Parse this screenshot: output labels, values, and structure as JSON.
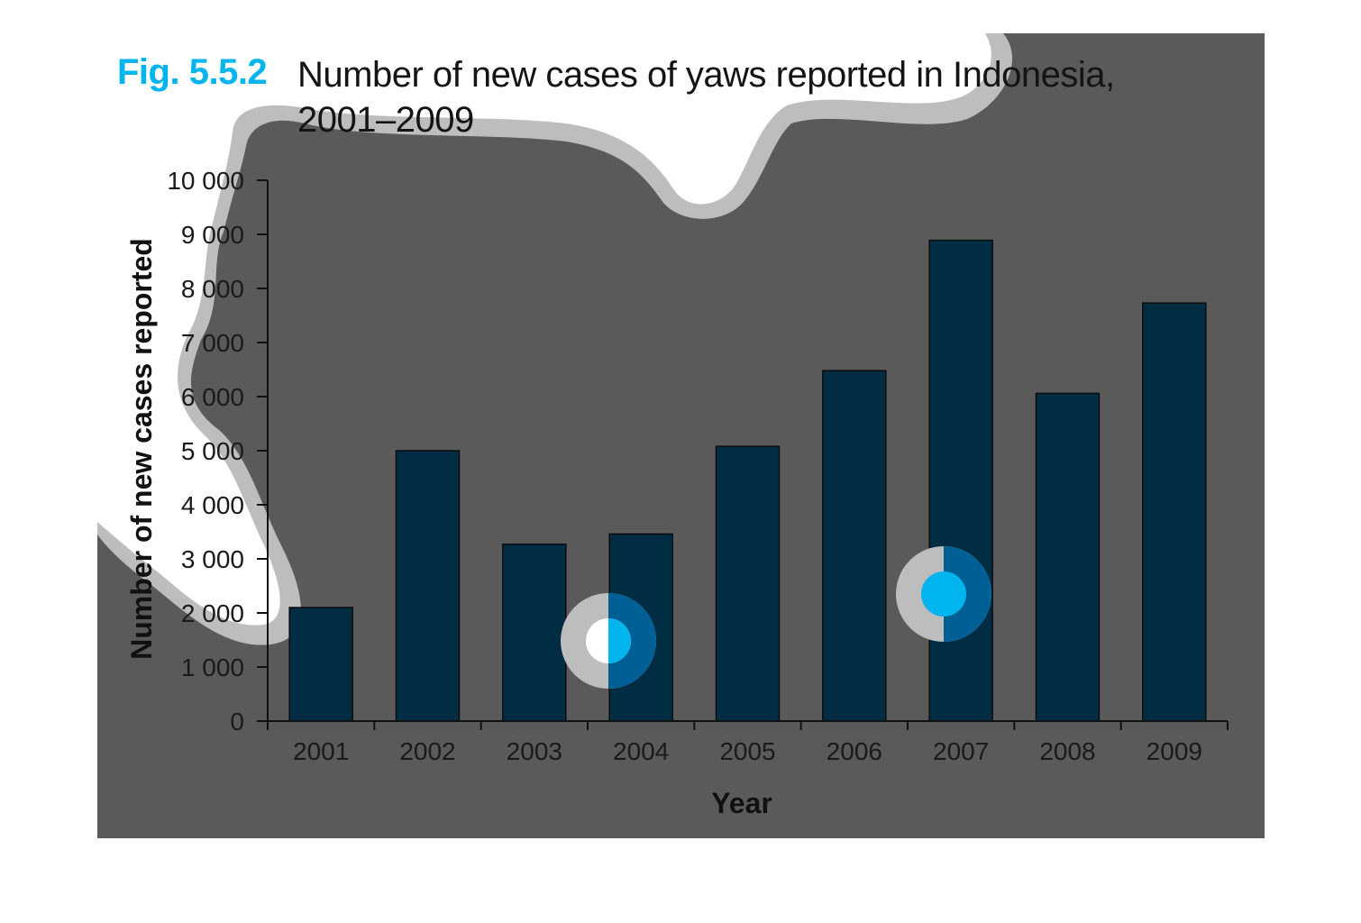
{
  "figure": {
    "number": "Fig. 5.5.2",
    "title": "Number of new cases of yaws reported in Indonesia, 2001–2009"
  },
  "colors": {
    "accent": "#00b4ee",
    "bar": "#002c44",
    "background_panel": "#5a5a5a",
    "callout_outline": "#bdbdbd"
  },
  "chart_data": {
    "type": "bar",
    "title": "Number of new cases of yaws reported in Indonesia, 2001–2009",
    "xlabel": "Year",
    "ylabel": "Number of new cases reported",
    "categories": [
      "2001",
      "2002",
      "2003",
      "2004",
      "2005",
      "2006",
      "2007",
      "2008",
      "2009"
    ],
    "values": [
      2100,
      5000,
      3270,
      3460,
      5080,
      6480,
      8890,
      6060,
      7730
    ],
    "ylim": [
      0,
      10000
    ],
    "yticks": [
      0,
      1000,
      2000,
      3000,
      4000,
      5000,
      6000,
      7000,
      8000,
      9000,
      10000
    ],
    "ytick_labels": [
      "0",
      "1 000",
      "2 000",
      "3 000",
      "4 000",
      "5 000",
      "6 000",
      "7 000",
      "8 000",
      "9 000",
      "10 000"
    ],
    "grid": false,
    "legend": "none"
  }
}
